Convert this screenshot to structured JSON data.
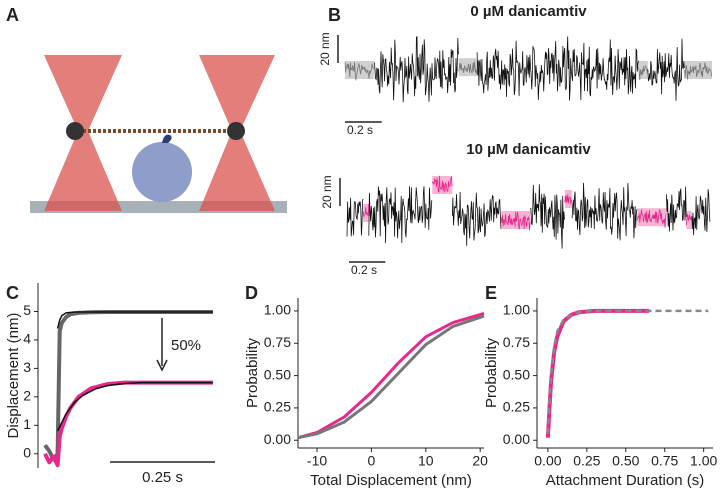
{
  "chart_data": [
    {
      "type": "diagram",
      "panel": "A"
    },
    {
      "type": "trace",
      "panel": "B",
      "title": "0 µM danicamtiv",
      "free_color": "#111111",
      "color": "#777777",
      "xlim": [
        0,
        2
      ],
      "scale_x": {
        "value": 0.2,
        "label": "0.2 s"
      },
      "scale_y": {
        "value": 20,
        "label": "20 nm"
      },
      "segments": [
        {
          "start": 0,
          "end": 0.16,
          "level": 0
        },
        {
          "start": 0.62,
          "end": 0.72,
          "level": 2
        },
        {
          "start": 1.6,
          "end": 1.65,
          "level": 0
        },
        {
          "start": 1.85,
          "end": 2,
          "level": 0
        }
      ]
    },
    {
      "type": "trace",
      "title": "10 µM danicamtiv",
      "free_color": "#111111",
      "color": "#e8288c",
      "xlim": [
        0,
        2
      ],
      "scale_x": {
        "value": 0.2,
        "label": "0.2 s"
      },
      "scale_y": {
        "value": 20,
        "label": "20 nm"
      },
      "segments": [
        {
          "start": 0.09,
          "end": 0.12,
          "level": 0
        },
        {
          "start": 0.47,
          "end": 0.58,
          "level": 20
        },
        {
          "start": 0.85,
          "end": 1.01,
          "level": -5
        },
        {
          "start": 1.2,
          "end": 1.24,
          "level": 10
        },
        {
          "start": 1.6,
          "end": 1.76,
          "level": -3
        },
        {
          "start": 1.87,
          "end": 1.9,
          "level": -5
        }
      ]
    },
    {
      "type": "line",
      "panel": "C",
      "ylabel": "Displacement (nm)",
      "xlim": [
        -0.03,
        0.375
      ],
      "ylim": [
        -0.5,
        6
      ],
      "yticks": [
        0,
        1,
        2,
        3,
        4,
        5
      ],
      "scale_x": {
        "value": 0.25,
        "label": "0.25 s"
      },
      "annotation": "50%",
      "series": [
        {
          "color": "#666666",
          "width": 4,
          "x": [
            -0.03,
            -0.02,
            -0.01,
            0,
            0.005,
            0.01,
            0.02,
            0.03,
            0.05,
            0.08,
            0.12,
            0.16,
            0.2,
            0.25,
            0.3,
            0.37
          ],
          "values": [
            0.3,
            0.1,
            -0.2,
            0,
            4.3,
            4.6,
            4.8,
            4.9,
            4.95,
            4.97,
            4.98,
            4.98,
            4.98,
            4.98,
            4.98,
            4.98
          ]
        },
        {
          "color": "#e8288c",
          "width": 4,
          "x": [
            -0.03,
            -0.02,
            -0.01,
            0,
            0.005,
            0.01,
            0.02,
            0.03,
            0.05,
            0.08,
            0.12,
            0.16,
            0.2,
            0.25,
            0.3,
            0.37
          ],
          "values": [
            0,
            -0.3,
            -0.1,
            -0.4,
            0.6,
            0.9,
            1.3,
            1.6,
            2.0,
            2.3,
            2.45,
            2.5,
            2.5,
            2.5,
            2.5,
            2.5
          ]
        },
        {
          "color": "#111111",
          "width": 1.5,
          "x": [
            0,
            0.005,
            0.01,
            0.02,
            0.04,
            0.08,
            0.37
          ],
          "values": [
            4.4,
            4.7,
            4.85,
            4.95,
            4.98,
            4.98,
            4.98
          ]
        },
        {
          "color": "#111111",
          "width": 1.5,
          "x": [
            0,
            0.02,
            0.04,
            0.06,
            0.09,
            0.12,
            0.16,
            0.2,
            0.37
          ],
          "values": [
            0.8,
            1.4,
            1.8,
            2.05,
            2.28,
            2.4,
            2.47,
            2.5,
            2.5
          ]
        }
      ]
    },
    {
      "type": "line",
      "panel": "D",
      "xlabel": "Total Displacement (nm)",
      "ylabel": "Probability",
      "xlim": [
        -13.5,
        20.7
      ],
      "ylim": [
        -0.06,
        1.1
      ],
      "xticks": [
        -10,
        0,
        10,
        20
      ],
      "yticks": [
        {
          "value": 0,
          "label": "0.00"
        },
        {
          "value": 0.25,
          "label": "0.25"
        },
        {
          "value": 0.5,
          "label": "0.50"
        },
        {
          "value": 0.75,
          "label": "0.75"
        },
        {
          "value": 1,
          "label": "1.00"
        }
      ],
      "series": [
        {
          "color": "#e8288c",
          "width": 3,
          "x": [
            -13.5,
            -10,
            -5,
            0,
            5,
            10,
            15,
            20.7
          ],
          "values": [
            0.02,
            0.06,
            0.18,
            0.37,
            0.6,
            0.8,
            0.91,
            0.98
          ]
        },
        {
          "color": "#777777",
          "width": 3,
          "x": [
            -13.5,
            -10,
            -5,
            0,
            5,
            10,
            15,
            20.7
          ],
          "values": [
            0.02,
            0.05,
            0.14,
            0.3,
            0.52,
            0.74,
            0.88,
            0.96
          ]
        }
      ]
    },
    {
      "type": "line",
      "panel": "E",
      "xlabel": "Attachment Duration (s)",
      "ylabel": "Probability",
      "xlim": [
        -0.07,
        1.06
      ],
      "ylim": [
        -0.06,
        1.1
      ],
      "xticks": [
        {
          "value": 0,
          "label": "0.00"
        },
        {
          "value": 0.25,
          "label": "0.25"
        },
        {
          "value": 0.5,
          "label": "0.50"
        },
        {
          "value": 0.75,
          "label": "0.75"
        },
        {
          "value": 1,
          "label": "1.00"
        }
      ],
      "yticks": [
        {
          "value": 0,
          "label": "0.00"
        },
        {
          "value": 0.25,
          "label": "0.25"
        },
        {
          "value": 0.5,
          "label": "0.50"
        },
        {
          "value": 0.75,
          "label": "0.75"
        },
        {
          "value": 1,
          "label": "1.00"
        }
      ],
      "series": [
        {
          "color": "#e8288c",
          "width": 4,
          "x": [
            0,
            0.01,
            0.02,
            0.04,
            0.06,
            0.1,
            0.15,
            0.2,
            0.3,
            0.5,
            0.65
          ],
          "values": [
            0.02,
            0.25,
            0.45,
            0.68,
            0.8,
            0.92,
            0.97,
            0.99,
            1,
            1,
            1
          ]
        },
        {
          "color": "#888888",
          "width": 2.5,
          "dash": true,
          "x": [
            0,
            0.01,
            0.02,
            0.04,
            0.06,
            0.1,
            0.15,
            0.2,
            0.3,
            0.5,
            1.03
          ],
          "values": [
            0.05,
            0.3,
            0.5,
            0.72,
            0.84,
            0.93,
            0.97,
            0.99,
            1,
            1,
            1
          ]
        }
      ]
    }
  ]
}
